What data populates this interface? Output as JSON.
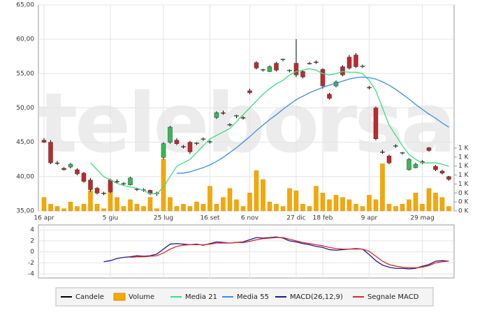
{
  "chart_data": [
    {
      "type": "candlestick",
      "watermark": "teleborsa",
      "categories": [
        "16 apr",
        null,
        null,
        null,
        null,
        null,
        null,
        null,
        null,
        null,
        "5 giu",
        null,
        null,
        null,
        null,
        null,
        null,
        null,
        "25 lug",
        null,
        null,
        null,
        null,
        null,
        null,
        "16 set",
        null,
        null,
        null,
        null,
        null,
        "6 nov",
        null,
        null,
        null,
        null,
        null,
        null,
        "27 dic",
        null,
        null,
        null,
        "18 feb",
        null,
        null,
        null,
        null,
        null,
        null,
        "9 apr",
        null,
        null,
        null,
        null,
        null,
        null,
        null,
        "29 mag",
        null,
        null,
        null,
        null
      ],
      "ylim": [
        35,
        65
      ],
      "yticks": [
        {
          "value": 35,
          "label": "35,00"
        },
        {
          "value": 40,
          "label": "40,00"
        },
        {
          "value": 45,
          "label": "45,00"
        },
        {
          "value": 50,
          "label": "50,00"
        },
        {
          "value": 55,
          "label": "55,00"
        },
        {
          "value": 60,
          "label": "60,00"
        },
        {
          "value": 65,
          "label": "65,00"
        }
      ],
      "y2lim": [
        0,
        1400
      ],
      "y2ticks": [
        {
          "value": 0,
          "label": "0 K"
        },
        {
          "value": 200,
          "label": "0 K"
        },
        {
          "value": 400,
          "label": "0 K"
        },
        {
          "value": 600,
          "label": "1 K"
        },
        {
          "value": 800,
          "label": "1 K"
        },
        {
          "value": 1000,
          "label": "1 K"
        },
        {
          "value": 1200,
          "label": "1 K"
        },
        {
          "value": 1400,
          "label": "1 K"
        }
      ],
      "grid": true,
      "up_color": "#33bb55",
      "down_color": "#c0282c",
      "series": [
        {
          "name": "Candele",
          "color": "#000000",
          "open": [
            45.3,
            45.0,
            42.0,
            41.2,
            41.4,
            41.0,
            40.5,
            39.5,
            38.3,
            37.6,
            39.5,
            39.3,
            38.9,
            38.8,
            38.2,
            38.0,
            38.0,
            37.5,
            42.8,
            45.0,
            45.3,
            44.4,
            45.0,
            44.8,
            45.4,
            45.0,
            48.6,
            49.3,
            47.6,
            48.8,
            48.6,
            52.5,
            56.6,
            55.5,
            55.3,
            56.5,
            57.0,
            55.4,
            56.5,
            55.3,
            56.5,
            56.7,
            55.6,
            52.0,
            53.2,
            56.0,
            57.4,
            57.7,
            56.0,
            53.0,
            50.0,
            43.6,
            43.0,
            44.4,
            43.4,
            41.0,
            41.3,
            42.2,
            44.2,
            41.5,
            40.8,
            40.0
          ],
          "high": [
            45.6,
            45.3,
            42.3,
            41.4,
            42.0,
            41.2,
            40.7,
            39.8,
            38.5,
            37.8,
            39.7,
            39.6,
            39.2,
            40.0,
            38.4,
            38.3,
            38.1,
            37.8,
            45.0,
            47.4,
            45.6,
            44.6,
            45.2,
            45.0,
            45.7,
            45.3,
            49.5,
            49.6,
            47.8,
            49.0,
            48.8,
            52.8,
            56.8,
            55.7,
            56.2,
            56.7,
            57.2,
            55.6,
            60.0,
            55.5,
            56.7,
            56.9,
            55.8,
            52.2,
            54.0,
            56.2,
            57.7,
            58.0,
            56.3,
            53.2,
            50.2,
            43.9,
            43.2,
            44.7,
            43.6,
            42.7,
            42.0,
            42.4,
            44.3,
            41.7,
            41.0,
            40.1
          ],
          "low": [
            44.9,
            41.8,
            41.7,
            40.9,
            41.2,
            40.2,
            39.1,
            37.8,
            37.4,
            37.3,
            37.6,
            39.0,
            38.7,
            38.7,
            37.9,
            37.8,
            37.3,
            37.2,
            42.5,
            44.8,
            44.6,
            44.1,
            43.3,
            44.6,
            45.2,
            44.8,
            48.4,
            49.0,
            47.3,
            48.5,
            48.3,
            52.0,
            55.6,
            55.3,
            55.2,
            55.3,
            56.8,
            55.2,
            54.5,
            54.3,
            56.3,
            56.4,
            52.8,
            51.2,
            53.0,
            54.6,
            55.6,
            55.8,
            55.8,
            52.7,
            45.3,
            43.3,
            41.8,
            44.2,
            43.2,
            40.9,
            41.2,
            41.8,
            43.6,
            40.8,
            40.3,
            39.4
          ],
          "close": [
            45.0,
            42.0,
            41.9,
            41.0,
            41.8,
            40.4,
            39.3,
            38.1,
            37.6,
            37.5,
            37.8,
            39.2,
            39.0,
            39.8,
            38.1,
            38.1,
            37.5,
            37.6,
            44.8,
            47.2,
            44.8,
            44.3,
            43.6,
            44.9,
            45.5,
            45.1,
            49.3,
            49.2,
            47.5,
            48.9,
            48.5,
            52.2,
            55.8,
            55.6,
            56.0,
            55.5,
            57.1,
            55.5,
            54.8,
            54.5,
            56.4,
            56.6,
            53.2,
            51.4,
            53.8,
            54.8,
            55.8,
            56.0,
            56.1,
            52.9,
            45.5,
            43.5,
            42.0,
            44.5,
            43.5,
            42.5,
            41.8,
            42.0,
            43.8,
            41.0,
            40.5,
            39.6
          ]
        },
        {
          "name": "Volume",
          "type": "bar",
          "axis": "y2",
          "color": "#f5a800",
          "values": [
            300,
            150,
            100,
            50,
            200,
            100,
            150,
            450,
            150,
            50,
            600,
            300,
            100,
            250,
            150,
            100,
            300,
            50,
            1150,
            300,
            100,
            150,
            100,
            200,
            150,
            550,
            150,
            300,
            500,
            250,
            100,
            400,
            900,
            700,
            200,
            150,
            100,
            500,
            450,
            150,
            100,
            550,
            400,
            250,
            350,
            300,
            250,
            150,
            100,
            350,
            250,
            1050,
            150,
            100,
            150,
            250,
            400,
            150,
            500,
            400,
            300,
            100
          ]
        },
        {
          "name": "Media 21",
          "type": "line",
          "color": "#3ddc84",
          "values": [
            null,
            null,
            null,
            null,
            null,
            null,
            null,
            42,
            41,
            40,
            39.5,
            39,
            38.7,
            38.5,
            38.3,
            38,
            37.5,
            37.5,
            38.5,
            40,
            41.5,
            42,
            42.5,
            43.5,
            44.5,
            45.5,
            46,
            46.5,
            47,
            48,
            49,
            50,
            51,
            52,
            52.8,
            53.5,
            54,
            54.8,
            55.3,
            55.5,
            55.7,
            55.5,
            55,
            54.8,
            55,
            55.3,
            55.2,
            55.2,
            55,
            54,
            52.5,
            50,
            47.5,
            46,
            44.5,
            43.2,
            42.5,
            42,
            42,
            42,
            41.8,
            41.5
          ]
        },
        {
          "name": "Media 55",
          "type": "line",
          "color": "#3a8ee0",
          "values": [
            null,
            null,
            null,
            null,
            null,
            null,
            null,
            null,
            null,
            null,
            null,
            null,
            null,
            null,
            null,
            null,
            null,
            null,
            null,
            null,
            40.5,
            40.5,
            40.7,
            41,
            41.3,
            41.7,
            42.2,
            42.8,
            43.5,
            44.2,
            45,
            45.8,
            46.7,
            47.5,
            48.3,
            49,
            49.8,
            50.5,
            51.2,
            51.7,
            52.2,
            52.6,
            53,
            53.3,
            53.6,
            53.9,
            54.2,
            54.4,
            54.5,
            54.4,
            54.2,
            53.8,
            53.3,
            52.7,
            52,
            51.3,
            50.5,
            49.8,
            49.1,
            48.5,
            47.8,
            47.2
          ]
        }
      ]
    },
    {
      "type": "line",
      "ylim": [
        -4.75,
        4.9
      ],
      "yticks": [
        -4,
        -2,
        0,
        2,
        4
      ],
      "grid": true,
      "series": [
        {
          "name": "MACD(26,12,9)",
          "color": "#1a1a8c",
          "values": [
            null,
            null,
            null,
            null,
            null,
            null,
            null,
            null,
            null,
            -1.8,
            -1.6,
            -1.2,
            -1.0,
            -0.9,
            -0.7,
            -0.8,
            -0.7,
            -0.4,
            0.5,
            1.4,
            1.5,
            1.4,
            1.3,
            1.4,
            1.2,
            1.5,
            1.8,
            1.7,
            1.6,
            1.7,
            1.8,
            2.2,
            2.6,
            2.5,
            2.6,
            2.7,
            2.5,
            2.0,
            1.8,
            1.5,
            1.3,
            1.0,
            0.8,
            0.4,
            0.3,
            0.4,
            0.5,
            0.6,
            0.5,
            -0.5,
            -1.6,
            -2.4,
            -2.8,
            -3.0,
            -3.0,
            -3.1,
            -3.0,
            -2.6,
            -2.3,
            -1.7,
            -1.6,
            -1.7
          ]
        },
        {
          "name": "Segnale MACD",
          "color": "#e02828",
          "values": [
            null,
            null,
            null,
            null,
            null,
            null,
            null,
            null,
            null,
            null,
            null,
            null,
            null,
            -1.0,
            -0.9,
            -0.9,
            -0.8,
            -0.7,
            -0.2,
            0.5,
            1.0,
            1.2,
            1.3,
            1.3,
            1.3,
            1.4,
            1.6,
            1.6,
            1.6,
            1.7,
            1.7,
            1.9,
            2.2,
            2.4,
            2.5,
            2.6,
            2.6,
            2.3,
            2.0,
            1.7,
            1.5,
            1.3,
            1.1,
            0.8,
            0.6,
            0.5,
            0.5,
            0.5,
            0.5,
            0.1,
            -0.8,
            -1.7,
            -2.3,
            -2.6,
            -2.8,
            -2.9,
            -2.9,
            -2.8,
            -2.5,
            -2.0,
            -1.8,
            -1.7
          ]
        }
      ]
    }
  ]
}
